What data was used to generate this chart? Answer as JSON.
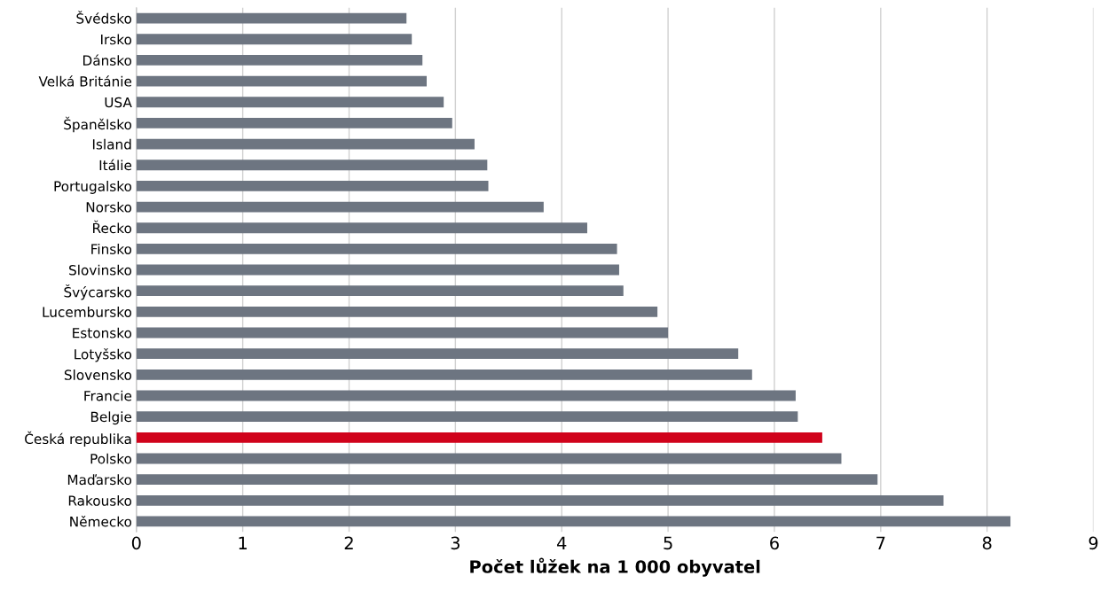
{
  "chart_data": {
    "type": "bar",
    "orientation": "horizontal",
    "xlabel": "Počet lůžek na 1 000 obyvatel",
    "categories": [
      "Švédsko",
      "Irsko",
      "Dánsko",
      "Velká Británie",
      "USA",
      "Španělsko",
      "Island",
      "Itálie",
      "Portugalsko",
      "Norsko",
      "Řecko",
      "Finsko",
      "Slovinsko",
      "Švýcarsko",
      "Lucembursko",
      "Estonsko",
      "Lotyšsko",
      "Slovensko",
      "Francie",
      "Belgie",
      "Česká republika",
      "Polsko",
      "Maďarsko",
      "Rakousko",
      "Německo"
    ],
    "values": [
      2.54,
      2.59,
      2.69,
      2.73,
      2.89,
      2.97,
      3.18,
      3.3,
      3.31,
      3.83,
      4.24,
      4.52,
      4.54,
      4.58,
      4.9,
      5.0,
      5.66,
      5.79,
      6.2,
      6.22,
      6.45,
      6.63,
      6.97,
      7.59,
      8.22
    ],
    "colors": [
      "#6d7581",
      "#6d7581",
      "#6d7581",
      "#6d7581",
      "#6d7581",
      "#6d7581",
      "#6d7581",
      "#6d7581",
      "#6d7581",
      "#6d7581",
      "#6d7581",
      "#6d7581",
      "#6d7581",
      "#6d7581",
      "#6d7581",
      "#6d7581",
      "#6d7581",
      "#6d7581",
      "#6d7581",
      "#6d7581",
      "#d0021b",
      "#6d7581",
      "#6d7581",
      "#6d7581",
      "#6d7581"
    ],
    "xlim": [
      0,
      9
    ],
    "xticks": [
      0,
      1,
      2,
      3,
      4,
      5,
      6,
      7,
      8,
      9
    ],
    "grid": "x"
  }
}
